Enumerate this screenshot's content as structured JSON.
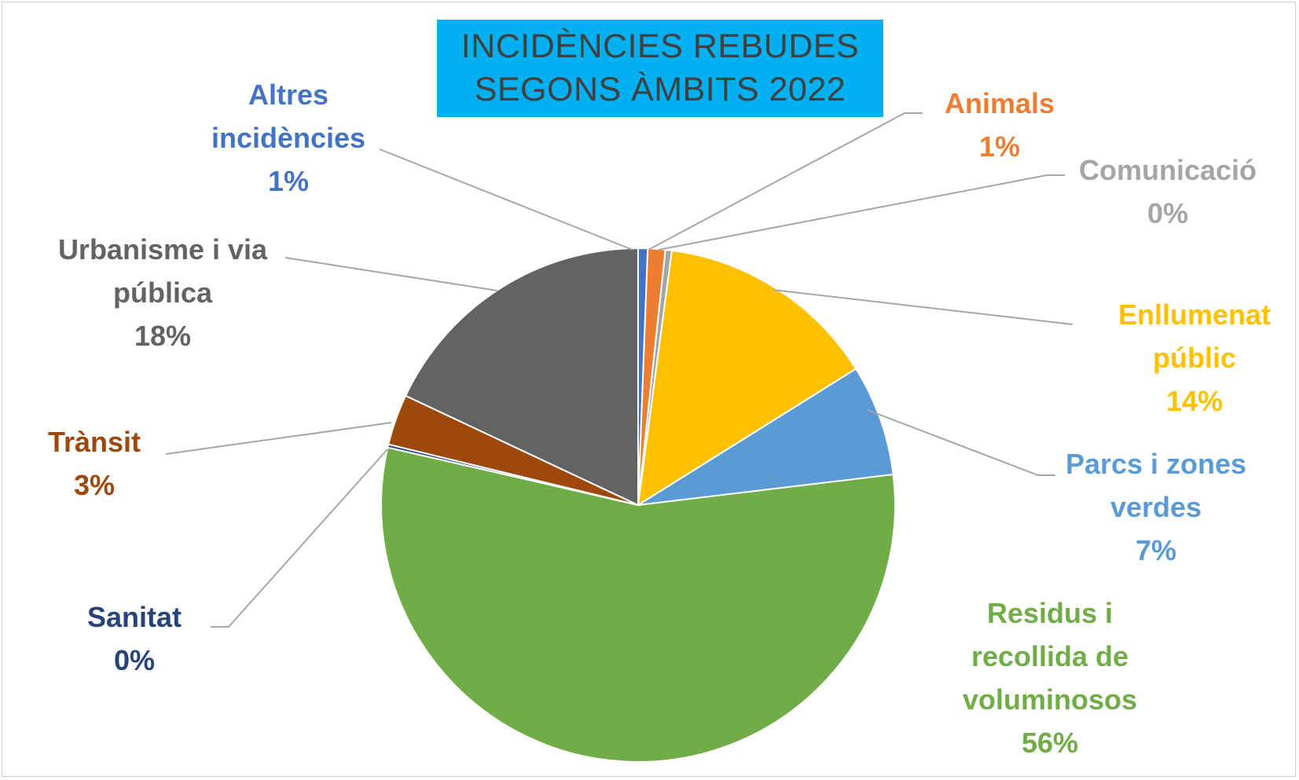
{
  "chart_data": {
    "type": "pie",
    "title": [
      "INCIDÈNCIES REBUDES",
      "SEGONS ÀMBITS 2022"
    ],
    "start_angle_deg": 0,
    "direction": "clockwise",
    "slices": [
      {
        "name": "Altres incidències",
        "label_lines": [
          "Altres",
          "incidències"
        ],
        "pct_label": "1%",
        "value": 0.6,
        "color": "#4472c4"
      },
      {
        "name": "Animals",
        "label_lines": [
          "Animals"
        ],
        "pct_label": "1%",
        "value": 1.1,
        "color": "#ed7d31"
      },
      {
        "name": "Comunicació",
        "label_lines": [
          "Comunicació"
        ],
        "pct_label": "0%",
        "value": 0.4,
        "color": "#a5a5a5"
      },
      {
        "name": "Enllumenat públic",
        "label_lines": [
          "Enllumenat",
          "públic"
        ],
        "pct_label": "14%",
        "value": 14,
        "color": "#ffc000"
      },
      {
        "name": "Parcs i zones verdes",
        "label_lines": [
          "Parcs i zones",
          "verdes"
        ],
        "pct_label": "7%",
        "value": 7,
        "color": "#5b9bd5"
      },
      {
        "name": "Residus i recollida de voluminosos",
        "label_lines": [
          "Residus i",
          "recollida de",
          "voluminosos"
        ],
        "pct_label": "56%",
        "value": 55.5,
        "color": "#70ad47"
      },
      {
        "name": "Sanitat",
        "label_lines": [
          "Sanitat"
        ],
        "pct_label": "0%",
        "value": 0.2,
        "color": "#264478"
      },
      {
        "name": "Trànsit",
        "label_lines": [
          "Trànsit"
        ],
        "pct_label": "3%",
        "value": 3.2,
        "color": "#9e480e"
      },
      {
        "name": "Urbanisme i via pública",
        "label_lines": [
          "Urbanisme i via",
          "pública"
        ],
        "pct_label": "18%",
        "value": 18,
        "color": "#636363"
      }
    ],
    "leader_line_color": "#a6a6a6"
  }
}
